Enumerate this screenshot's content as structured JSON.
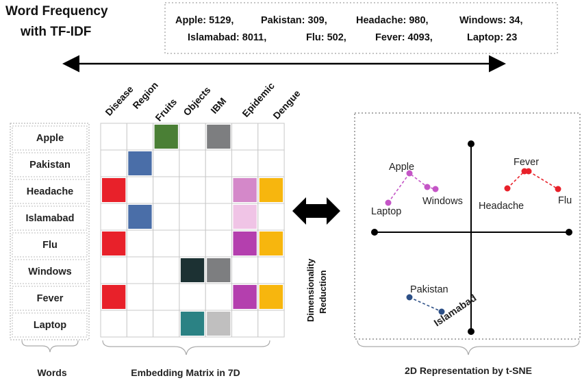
{
  "title_line1": "Word Frequency",
  "title_line2": "with TF-IDF",
  "frequency_line1": [
    "Apple: 5129,",
    "Pakistan: 309,",
    "Headache: 980,",
    "Windows: 34,"
  ],
  "frequency_line2": [
    "Islamabad: 8011,",
    "Flu: 502,",
    "Fever: 4093,",
    "Laptop: 23"
  ],
  "words": [
    "Apple",
    "Pakistan",
    "Headache",
    "Islamabad",
    "Flu",
    "Windows",
    "Fever",
    "Laptop"
  ],
  "dimensions": [
    "Disease",
    "Region",
    "Fruits",
    "Objects",
    "IBM",
    "Epidemic",
    "Dengue"
  ],
  "matrix_colors": [
    [
      "",
      "",
      "#4a7f35",
      "",
      "#7d7e80",
      "",
      ""
    ],
    [
      "",
      "#4a6ea8",
      "",
      "",
      "",
      "",
      ""
    ],
    [
      "#e8212a",
      "",
      "",
      "",
      "",
      "#d488c9",
      "#f7b60e"
    ],
    [
      "",
      "#4a6ea8",
      "",
      "",
      "",
      "#f0c4e6",
      ""
    ],
    [
      "#e8212a",
      "",
      "",
      "",
      "",
      "#b43fae",
      "#f7b60e"
    ],
    [
      "",
      "",
      "",
      "#1c3133",
      "#7d7e80",
      "",
      ""
    ],
    [
      "#e8212a",
      "",
      "",
      "",
      "",
      "#b43fae",
      "#f7b60e"
    ],
    [
      "",
      "",
      "",
      "#2b8284",
      "#c0bfbf",
      "",
      ""
    ]
  ],
  "dimensionality_reduction_line1": "Dimensionality",
  "dimensionality_reduction_line2": "Reduction",
  "tsne_clusters": [
    {
      "color": "#c455c6",
      "points": [
        {
          "label": "Apple"
        },
        {
          "label": "Windows"
        },
        {
          "label": "Laptop"
        }
      ]
    },
    {
      "color": "#e8212a",
      "points": [
        {
          "label": "Fever"
        },
        {
          "label": "Headache"
        },
        {
          "label": "Flu"
        }
      ]
    },
    {
      "color": "#2c4f86",
      "points": [
        {
          "label": "Pakistan"
        },
        {
          "label": "Islamabad"
        }
      ]
    }
  ],
  "caption_words": "Words",
  "caption_matrix": "Embedding Matrix in 7D",
  "caption_tsne": "2D Representation by t-SNE"
}
